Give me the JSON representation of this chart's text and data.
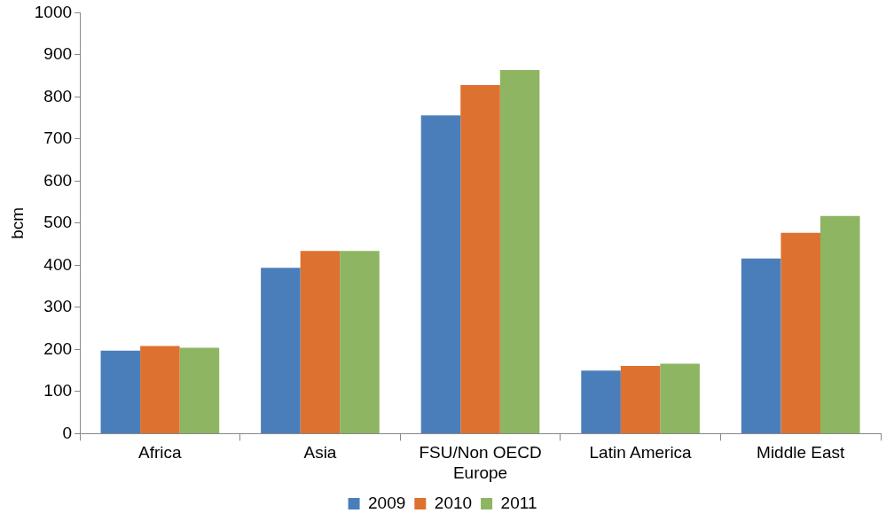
{
  "chart_data": {
    "type": "bar",
    "ylabel": "bcm",
    "categories": [
      "Africa",
      "Asia",
      "FSU/Non OECD Europe",
      "Latin America",
      "Middle East"
    ],
    "series": [
      {
        "name": "2009",
        "color": "#4a7ebb",
        "values": [
          197,
          394,
          756,
          150,
          416
        ]
      },
      {
        "name": "2010",
        "color": "#dd7130",
        "values": [
          208,
          434,
          828,
          161,
          477
        ]
      },
      {
        "name": "2011",
        "color": "#8db562",
        "values": [
          204,
          434,
          864,
          166,
          517
        ]
      }
    ],
    "ylim": [
      0,
      1000
    ],
    "yticks": [
      0,
      100,
      200,
      300,
      400,
      500,
      600,
      700,
      800,
      900,
      1000
    ],
    "grid": false,
    "legend": "bottom"
  }
}
